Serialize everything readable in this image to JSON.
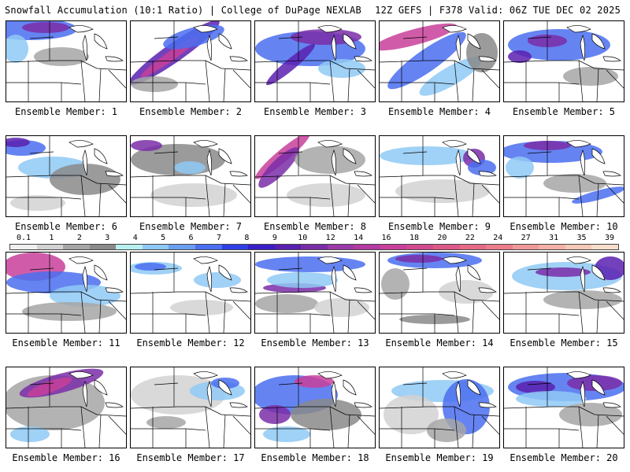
{
  "header": {
    "left": "Snowfall Accumulation (10:1 Ratio) | College of DuPage NEXLAB",
    "right": "12Z GEFS | F378 Valid: 06Z TUE DEC 02 2025"
  },
  "legend": {
    "labels": [
      "0.1",
      "1",
      "2",
      "3",
      "4",
      "5",
      "6",
      "7",
      "8",
      "9",
      "10",
      "12",
      "14",
      "16",
      "18",
      "20",
      "22",
      "24",
      "27",
      "31",
      "35",
      "39"
    ],
    "colors": [
      "#f0f0f0",
      "#d2d2d2",
      "#a6a6a6",
      "#8a8a8a",
      "#b8f0f0",
      "#8fc9f5",
      "#6a9ff0",
      "#4a6ff0",
      "#2f3fe8",
      "#3a1fc8",
      "#5a20b0",
      "#7a2da8",
      "#9a3aa8",
      "#b33aa0",
      "#c8409a",
      "#d24a8f",
      "#dc5888",
      "#e46a88",
      "#ea7c8c",
      "#ef9898",
      "#f3b0a8",
      "#f6c8b8",
      "#f8dccc"
    ]
  },
  "members": [
    {
      "label": "Ensemble Member: 1",
      "blobs": [
        {
          "c": "#4a6ff0",
          "x": 30,
          "y": 10,
          "rx": 60,
          "ry": 14
        },
        {
          "c": "#7a2da8",
          "x": 50,
          "y": 8,
          "rx": 30,
          "ry": 7
        },
        {
          "c": "#8fc9f5",
          "x": 12,
          "y": 35,
          "rx": 16,
          "ry": 18
        },
        {
          "c": "#a6a6a6",
          "x": 70,
          "y": 45,
          "rx": 35,
          "ry": 12
        }
      ]
    },
    {
      "label": "Ensemble Member: 2",
      "blobs": [
        {
          "c": "#5a20b0",
          "x": 55,
          "y": 40,
          "rx": 70,
          "ry": 12,
          "r": -35
        },
        {
          "c": "#c8409a",
          "x": 50,
          "y": 45,
          "rx": 45,
          "ry": 6,
          "r": -35
        },
        {
          "c": "#4a6ff0",
          "x": 80,
          "y": 20,
          "rx": 40,
          "ry": 12,
          "r": -15
        },
        {
          "c": "#a6a6a6",
          "x": 30,
          "y": 80,
          "rx": 30,
          "ry": 10
        }
      ]
    },
    {
      "label": "Ensemble Member: 3",
      "blobs": [
        {
          "c": "#4a6ff0",
          "x": 70,
          "y": 35,
          "rx": 70,
          "ry": 22
        },
        {
          "c": "#7a2da8",
          "x": 90,
          "y": 20,
          "rx": 45,
          "ry": 10
        },
        {
          "c": "#5a20b0",
          "x": 45,
          "y": 55,
          "rx": 40,
          "ry": 7,
          "r": -40
        },
        {
          "c": "#8fc9f5",
          "x": 110,
          "y": 60,
          "rx": 30,
          "ry": 12
        }
      ]
    },
    {
      "label": "Ensemble Member: 4",
      "blobs": [
        {
          "c": "#c8409a",
          "x": 45,
          "y": 20,
          "rx": 55,
          "ry": 10,
          "r": -15
        },
        {
          "c": "#4a6ff0",
          "x": 60,
          "y": 50,
          "rx": 60,
          "ry": 14,
          "r": -35
        },
        {
          "c": "#8fc9f5",
          "x": 90,
          "y": 70,
          "rx": 45,
          "ry": 12,
          "r": -30
        },
        {
          "c": "#8a8a8a",
          "x": 130,
          "y": 40,
          "rx": 20,
          "ry": 25
        }
      ]
    },
    {
      "label": "Ensemble Member: 5",
      "blobs": [
        {
          "c": "#4a6ff0",
          "x": 70,
          "y": 30,
          "rx": 65,
          "ry": 20
        },
        {
          "c": "#7a2da8",
          "x": 55,
          "y": 25,
          "rx": 25,
          "ry": 8
        },
        {
          "c": "#5a20b0",
          "x": 20,
          "y": 45,
          "rx": 15,
          "ry": 8
        },
        {
          "c": "#a6a6a6",
          "x": 110,
          "y": 70,
          "rx": 35,
          "ry": 12
        }
      ]
    },
    {
      "label": "Ensemble Member: 6",
      "blobs": [
        {
          "c": "#4a6ff0",
          "x": 20,
          "y": 15,
          "rx": 30,
          "ry": 10
        },
        {
          "c": "#5a20b0",
          "x": 12,
          "y": 8,
          "rx": 18,
          "ry": 6
        },
        {
          "c": "#8fc9f5",
          "x": 60,
          "y": 40,
          "rx": 45,
          "ry": 14
        },
        {
          "c": "#8a8a8a",
          "x": 100,
          "y": 55,
          "rx": 45,
          "ry": 20
        },
        {
          "c": "#d2d2d2",
          "x": 40,
          "y": 85,
          "rx": 35,
          "ry": 10
        }
      ]
    },
    {
      "label": "Ensemble Member: 7",
      "blobs": [
        {
          "c": "#8a8a8a",
          "x": 60,
          "y": 30,
          "rx": 60,
          "ry": 20
        },
        {
          "c": "#7a2da8",
          "x": 20,
          "y": 12,
          "rx": 20,
          "ry": 7
        },
        {
          "c": "#8fc9f5",
          "x": 75,
          "y": 40,
          "rx": 20,
          "ry": 8
        },
        {
          "c": "#d2d2d2",
          "x": 80,
          "y": 75,
          "rx": 55,
          "ry": 15
        }
      ]
    },
    {
      "label": "Ensemble Member: 8",
      "blobs": [
        {
          "c": "#c8409a",
          "x": 35,
          "y": 25,
          "rx": 45,
          "ry": 8,
          "r": -40
        },
        {
          "c": "#7a2da8",
          "x": 30,
          "y": 40,
          "rx": 35,
          "ry": 10,
          "r": -45
        },
        {
          "c": "#a6a6a6",
          "x": 95,
          "y": 30,
          "rx": 45,
          "ry": 18
        },
        {
          "c": "#d2d2d2",
          "x": 90,
          "y": 75,
          "rx": 50,
          "ry": 15
        }
      ]
    },
    {
      "label": "Ensemble Member: 9",
      "blobs": [
        {
          "c": "#8fc9f5",
          "x": 60,
          "y": 25,
          "rx": 60,
          "ry": 12
        },
        {
          "c": "#7a2da8",
          "x": 120,
          "y": 28,
          "rx": 14,
          "ry": 12
        },
        {
          "c": "#4a6ff0",
          "x": 130,
          "y": 40,
          "rx": 18,
          "ry": 10
        },
        {
          "c": "#d2d2d2",
          "x": 80,
          "y": 70,
          "rx": 60,
          "ry": 15
        }
      ]
    },
    {
      "label": "Ensemble Member: 10",
      "blobs": [
        {
          "c": "#4a6ff0",
          "x": 60,
          "y": 20,
          "rx": 65,
          "ry": 14
        },
        {
          "c": "#7a2da8",
          "x": 55,
          "y": 12,
          "rx": 30,
          "ry": 6
        },
        {
          "c": "#8fc9f5",
          "x": 20,
          "y": 40,
          "rx": 18,
          "ry": 14
        },
        {
          "c": "#4a6ff0",
          "x": 120,
          "y": 75,
          "rx": 35,
          "ry": 6,
          "r": -15
        },
        {
          "c": "#a6a6a6",
          "x": 90,
          "y": 60,
          "rx": 40,
          "ry": 12
        }
      ]
    },
    {
      "label": "Ensemble Member: 11",
      "blobs": [
        {
          "c": "#c8409a",
          "x": 35,
          "y": 18,
          "rx": 40,
          "ry": 18
        },
        {
          "c": "#4a6ff0",
          "x": 60,
          "y": 38,
          "rx": 60,
          "ry": 14
        },
        {
          "c": "#8fc9f5",
          "x": 100,
          "y": 55,
          "rx": 45,
          "ry": 14
        },
        {
          "c": "#a6a6a6",
          "x": 80,
          "y": 75,
          "rx": 60,
          "ry": 12
        }
      ]
    },
    {
      "label": "Ensemble Member: 12",
      "blobs": [
        {
          "c": "#8fc9f5",
          "x": 30,
          "y": 20,
          "rx": 35,
          "ry": 8
        },
        {
          "c": "#4a6ff0",
          "x": 25,
          "y": 18,
          "rx": 20,
          "ry": 5
        },
        {
          "c": "#8fc9f5",
          "x": 110,
          "y": 35,
          "rx": 30,
          "ry": 10
        },
        {
          "c": "#d2d2d2",
          "x": 90,
          "y": 70,
          "rx": 40,
          "ry": 10
        }
      ]
    },
    {
      "label": "Ensemble Member: 13",
      "blobs": [
        {
          "c": "#4a6ff0",
          "x": 70,
          "y": 15,
          "rx": 70,
          "ry": 10
        },
        {
          "c": "#7a2da8",
          "x": 50,
          "y": 45,
          "rx": 40,
          "ry": 6
        },
        {
          "c": "#8fc9f5",
          "x": 60,
          "y": 35,
          "rx": 45,
          "ry": 10
        },
        {
          "c": "#a6a6a6",
          "x": 40,
          "y": 65,
          "rx": 40,
          "ry": 12
        },
        {
          "c": "#d2d2d2",
          "x": 110,
          "y": 70,
          "rx": 35,
          "ry": 12
        }
      ]
    },
    {
      "label": "Ensemble Member: 14",
      "blobs": [
        {
          "c": "#4a6ff0",
          "x": 70,
          "y": 10,
          "rx": 60,
          "ry": 10
        },
        {
          "c": "#7a2da8",
          "x": 50,
          "y": 8,
          "rx": 30,
          "ry": 5
        },
        {
          "c": "#a6a6a6",
          "x": 20,
          "y": 40,
          "rx": 18,
          "ry": 20
        },
        {
          "c": "#8a8a8a",
          "x": 70,
          "y": 85,
          "rx": 45,
          "ry": 6
        },
        {
          "c": "#d2d2d2",
          "x": 110,
          "y": 50,
          "rx": 35,
          "ry": 15
        }
      ]
    },
    {
      "label": "Ensemble Member: 15",
      "blobs": [
        {
          "c": "#8fc9f5",
          "x": 80,
          "y": 30,
          "rx": 70,
          "ry": 18
        },
        {
          "c": "#7a2da8",
          "x": 75,
          "y": 25,
          "rx": 35,
          "ry": 6
        },
        {
          "c": "#5a20b0",
          "x": 135,
          "y": 20,
          "rx": 20,
          "ry": 15
        },
        {
          "c": "#a6a6a6",
          "x": 100,
          "y": 60,
          "rx": 50,
          "ry": 12
        }
      ]
    },
    {
      "label": "Ensemble Member: 16",
      "blobs": [
        {
          "c": "#a6a6a6",
          "x": 60,
          "y": 45,
          "rx": 65,
          "ry": 35
        },
        {
          "c": "#7a2da8",
          "x": 70,
          "y": 20,
          "rx": 55,
          "ry": 12,
          "r": -15
        },
        {
          "c": "#c8409a",
          "x": 55,
          "y": 25,
          "rx": 30,
          "ry": 7,
          "r": -20
        },
        {
          "c": "#8fc9f5",
          "x": 30,
          "y": 85,
          "rx": 25,
          "ry": 10
        }
      ]
    },
    {
      "label": "Ensemble Member: 17",
      "blobs": [
        {
          "c": "#d2d2d2",
          "x": 60,
          "y": 35,
          "rx": 60,
          "ry": 25
        },
        {
          "c": "#8fc9f5",
          "x": 110,
          "y": 30,
          "rx": 35,
          "ry": 12
        },
        {
          "c": "#4a6ff0",
          "x": 120,
          "y": 20,
          "rx": 18,
          "ry": 7
        },
        {
          "c": "#a6a6a6",
          "x": 45,
          "y": 70,
          "rx": 25,
          "ry": 8
        }
      ]
    },
    {
      "label": "Ensemble Member: 18",
      "blobs": [
        {
          "c": "#4a6ff0",
          "x": 50,
          "y": 35,
          "rx": 55,
          "ry": 25
        },
        {
          "c": "#c8409a",
          "x": 75,
          "y": 18,
          "rx": 25,
          "ry": 8
        },
        {
          "c": "#7a2da8",
          "x": 25,
          "y": 60,
          "rx": 20,
          "ry": 12
        },
        {
          "c": "#8a8a8a",
          "x": 90,
          "y": 60,
          "rx": 45,
          "ry": 20
        },
        {
          "c": "#8fc9f5",
          "x": 40,
          "y": 85,
          "rx": 30,
          "ry": 10
        }
      ]
    },
    {
      "label": "Ensemble Member: 19",
      "blobs": [
        {
          "c": "#8fc9f5",
          "x": 80,
          "y": 30,
          "rx": 65,
          "ry": 14
        },
        {
          "c": "#4a6ff0",
          "x": 110,
          "y": 50,
          "rx": 30,
          "ry": 35
        },
        {
          "c": "#d2d2d2",
          "x": 40,
          "y": 60,
          "rx": 35,
          "ry": 25
        },
        {
          "c": "#a6a6a6",
          "x": 85,
          "y": 80,
          "rx": 25,
          "ry": 15
        }
      ]
    },
    {
      "label": "Ensemble Member: 20",
      "blobs": [
        {
          "c": "#4a6ff0",
          "x": 80,
          "y": 25,
          "rx": 75,
          "ry": 18
        },
        {
          "c": "#7a2da8",
          "x": 115,
          "y": 20,
          "rx": 35,
          "ry": 10
        },
        {
          "c": "#5a20b0",
          "x": 40,
          "y": 25,
          "rx": 25,
          "ry": 8
        },
        {
          "c": "#8fc9f5",
          "x": 60,
          "y": 40,
          "rx": 45,
          "ry": 10
        },
        {
          "c": "#a6a6a6",
          "x": 110,
          "y": 60,
          "rx": 40,
          "ry": 15
        }
      ]
    }
  ]
}
